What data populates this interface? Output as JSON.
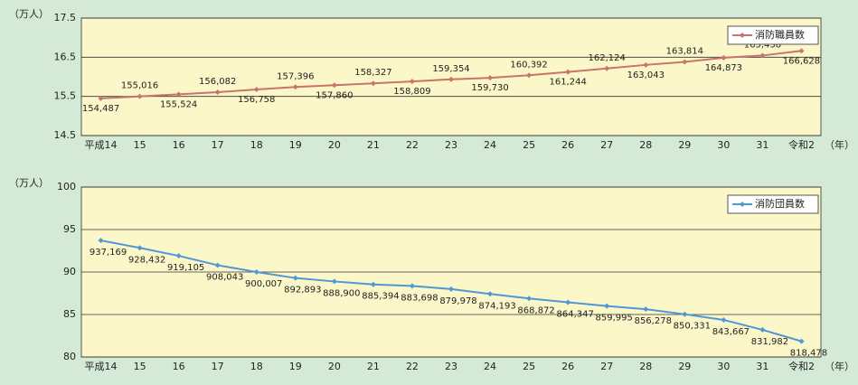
{
  "chart_data": [
    {
      "type": "line",
      "y_label": "（万人）",
      "x_unit": "（年）",
      "categories": [
        "平成14",
        "15",
        "16",
        "17",
        "18",
        "19",
        "20",
        "21",
        "22",
        "23",
        "24",
        "25",
        "26",
        "27",
        "28",
        "29",
        "30",
        "31",
        "令和2"
      ],
      "series": [
        {
          "name": "消防職員数",
          "color": "#c8736c",
          "values": [
            15.4487,
            15.5016,
            15.5524,
            15.6082,
            15.6758,
            15.7396,
            15.786,
            15.8327,
            15.8809,
            15.9354,
            15.973,
            16.0392,
            16.1244,
            16.2124,
            16.3043,
            16.3814,
            16.4873,
            16.5438,
            16.6628
          ],
          "value_labels": [
            "154,487",
            "155,016",
            "155,524",
            "156,082",
            "156,758",
            "157,396",
            "157,860",
            "158,327",
            "158,809",
            "159,354",
            "159,730",
            "160,392",
            "161,244",
            "162,124",
            "163,043",
            "163,814",
            "164,873",
            "165,438",
            "166,628"
          ]
        }
      ],
      "ylim": [
        14.5,
        17.5
      ],
      "yticks": [
        14.5,
        15.5,
        16.5,
        17.5
      ],
      "grid": true,
      "legend": "upper right"
    },
    {
      "type": "line",
      "y_label": "（万人）",
      "x_unit": "（年）",
      "categories": [
        "平成14",
        "15",
        "16",
        "17",
        "18",
        "19",
        "20",
        "21",
        "22",
        "23",
        "24",
        "25",
        "26",
        "27",
        "28",
        "29",
        "30",
        "31",
        "令和2"
      ],
      "series": [
        {
          "name": "消防団員数",
          "color": "#4f98d6",
          "values": [
            93.7169,
            92.8432,
            91.9105,
            90.8043,
            90.0007,
            89.2893,
            88.89,
            88.5394,
            88.3698,
            87.9978,
            87.4193,
            86.8872,
            86.4347,
            85.9995,
            85.6278,
            85.0331,
            84.3667,
            83.1982,
            81.8478
          ],
          "value_labels": [
            "937,169",
            "928,432",
            "919,105",
            "908,043",
            "900,007",
            "892,893",
            "888,900",
            "885,394",
            "883,698",
            "879,978",
            "874,193",
            "868,872",
            "864,347",
            "859,995",
            "856,278",
            "850,331",
            "843,667",
            "831,982",
            "818,478"
          ]
        }
      ],
      "ylim": [
        80,
        100
      ],
      "yticks": [
        80,
        85,
        90,
        95,
        100
      ],
      "grid": true,
      "legend": "upper right"
    }
  ]
}
